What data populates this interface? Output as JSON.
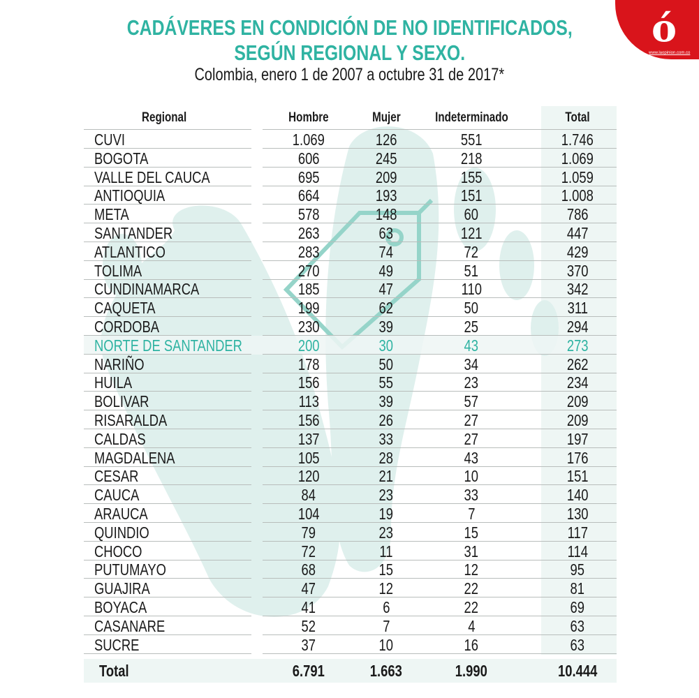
{
  "header": {
    "title_line1": "CADÁVERES EN CONDICIÓN DE NO IDENTIFICADOS,",
    "title_line2": "SEGÚN REGIONAL Y SEXO.",
    "subtitle": "Colombia, enero 1 de 2007 a octubre 31 de 2017*"
  },
  "logo": {
    "mark": "ó",
    "url": "www.laopinion.com.co",
    "color": "#d9141b"
  },
  "colors": {
    "accent": "#2fb3a2",
    "watermark": "#dff0ed",
    "total_bg": "#eef6f4"
  },
  "chart_data": {
    "type": "table",
    "title": "CADÁVERES EN CONDICIÓN DE NO IDENTIFICADOS, SEGÚN REGIONAL Y SEXO.",
    "columns": [
      "Regional",
      "Hombre",
      "Mujer",
      "Indeterminado",
      "Total"
    ],
    "highlight": "NORTE DE SANTANDER",
    "rows": [
      [
        "CUVI",
        "1.069",
        "126",
        "551",
        "1.746"
      ],
      [
        "BOGOTA",
        "606",
        "245",
        "218",
        "1.069"
      ],
      [
        "VALLE DEL CAUCA",
        "695",
        "209",
        "155",
        "1.059"
      ],
      [
        "ANTIOQUIA",
        "664",
        "193",
        "151",
        "1.008"
      ],
      [
        "META",
        "578",
        "148",
        "60",
        "786"
      ],
      [
        "SANTANDER",
        "263",
        "63",
        "121",
        "447"
      ],
      [
        "ATLANTICO",
        "283",
        "74",
        "72",
        "429"
      ],
      [
        "TOLIMA",
        "270",
        "49",
        "51",
        "370"
      ],
      [
        "CUNDINAMARCA",
        "185",
        "47",
        "110",
        "342"
      ],
      [
        "CAQUETA",
        "199",
        "62",
        "50",
        "311"
      ],
      [
        "CORDOBA",
        "230",
        "39",
        "25",
        "294"
      ],
      [
        "NORTE DE SANTANDER",
        "200",
        "30",
        "43",
        "273"
      ],
      [
        "NARIÑO",
        "178",
        "50",
        "34",
        "262"
      ],
      [
        "HUILA",
        "156",
        "55",
        "23",
        "234"
      ],
      [
        "BOLIVAR",
        "113",
        "39",
        "57",
        "209"
      ],
      [
        "RISARALDA",
        "156",
        "26",
        "27",
        "209"
      ],
      [
        "CALDAS",
        "137",
        "33",
        "27",
        "197"
      ],
      [
        "MAGDALENA",
        "105",
        "28",
        "43",
        "176"
      ],
      [
        "CESAR",
        "120",
        "21",
        "10",
        "151"
      ],
      [
        "CAUCA",
        "84",
        "23",
        "33",
        "140"
      ],
      [
        "ARAUCA",
        "104",
        "19",
        "7",
        "130"
      ],
      [
        "QUINDIO",
        "79",
        "23",
        "15",
        "117"
      ],
      [
        "CHOCO",
        "72",
        "11",
        "31",
        "114"
      ],
      [
        "PUTUMAYO",
        "68",
        "15",
        "12",
        "95"
      ],
      [
        "GUAJIRA",
        "47",
        "12",
        "22",
        "81"
      ],
      [
        "BOYACA",
        "41",
        "6",
        "22",
        "69"
      ],
      [
        "CASANARE",
        "52",
        "7",
        "4",
        "63"
      ],
      [
        "SUCRE",
        "37",
        "10",
        "16",
        "63"
      ]
    ],
    "total": [
      "Total",
      "6.791",
      "1.663",
      "1.990",
      "10.444"
    ]
  }
}
